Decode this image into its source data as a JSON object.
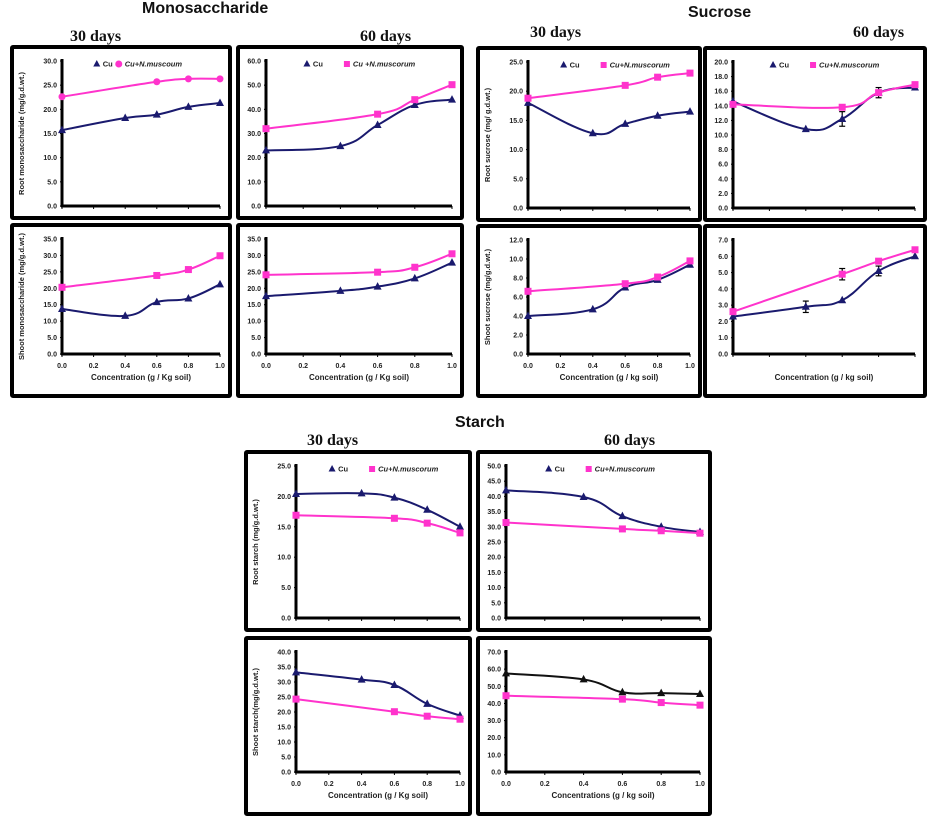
{
  "figure": {
    "groups": [
      {
        "title": "Monosaccharide",
        "days": [
          "30 days",
          "60 days"
        ]
      },
      {
        "title": "Sucrose",
        "days": [
          "30 days",
          "60 days"
        ]
      },
      {
        "title": "Starch",
        "days": [
          "30 days",
          "60 days"
        ]
      }
    ],
    "colors": {
      "cu": "#1a1a6e",
      "cu_nm": "#ff33cc",
      "cu_black": "#111111"
    }
  },
  "chart_data": [
    {
      "id": "mono-root-30",
      "type": "line",
      "group": "Monosaccharide",
      "period": "30 days",
      "ylabel": "Root monosaccharide (mg/g.d.wt.)",
      "xlabel": "",
      "ylim": [
        0,
        30
      ],
      "yticks": [
        "0.0",
        "5.0",
        "10.0",
        "15.0",
        "20.0",
        "25.0",
        "30.0"
      ],
      "xticks": [],
      "x": [
        0,
        0.4,
        0.6,
        0.8,
        1.0
      ],
      "legend": [
        "Cu",
        "Cu+N.muscoum"
      ],
      "series": [
        {
          "name": "Cu",
          "marker": "triangle",
          "x": [
            0,
            0.4,
            0.6,
            0.8,
            1.0
          ],
          "values": [
            15.7,
            18.2,
            18.9,
            20.5,
            21.3
          ]
        },
        {
          "name": "Cu+N.muscoum",
          "marker": "circle",
          "x": [
            0,
            0.6,
            0.8,
            1.0
          ],
          "values": [
            22.6,
            25.7,
            26.3,
            26.3
          ]
        }
      ]
    },
    {
      "id": "mono-root-60",
      "type": "line",
      "group": "Monosaccharide",
      "period": "60 days",
      "ylabel": "",
      "xlabel": "",
      "ylim": [
        0,
        60
      ],
      "yticks": [
        "0.0",
        "10.0",
        "20.0",
        "30.0",
        "40.0",
        "50.0",
        "60.0"
      ],
      "xticks": [],
      "legend": [
        "Cu",
        "Cu +N.muscorum"
      ],
      "series": [
        {
          "name": "Cu",
          "marker": "triangle",
          "x": [
            0,
            0.4,
            0.6,
            0.8,
            1.0
          ],
          "values": [
            23.0,
            24.8,
            33.5,
            41.8,
            44.0
          ]
        },
        {
          "name": "Cu +N.muscorum",
          "marker": "square",
          "x": [
            0,
            0.6,
            0.8,
            1.0
          ],
          "values": [
            32.0,
            38.0,
            44.0,
            50.2
          ]
        }
      ]
    },
    {
      "id": "mono-shoot-30",
      "type": "line",
      "group": "Monosaccharide",
      "period": "30 days",
      "ylabel": "Shoot monosaccharide (mg/g.d.wt.)",
      "xlabel": "Concentration (g / Kg soil)",
      "ylim": [
        0,
        35
      ],
      "yticks": [
        "0.0",
        "5.0",
        "10.0",
        "15.0",
        "20.0",
        "25.0",
        "30.0",
        "35.0"
      ],
      "xticks": [
        "0.0",
        "0.2",
        "0.4",
        "0.6",
        "0.8",
        "1.0"
      ],
      "legend": [],
      "series": [
        {
          "name": "Cu",
          "marker": "triangle",
          "x": [
            0,
            0.4,
            0.6,
            0.8,
            1.0
          ],
          "values": [
            13.7,
            11.6,
            15.8,
            16.9,
            21.2
          ]
        },
        {
          "name": "Cu+N.muscoum",
          "marker": "square",
          "x": [
            0,
            0.6,
            0.8,
            1.0
          ],
          "values": [
            20.3,
            23.9,
            25.7,
            29.9
          ]
        }
      ]
    },
    {
      "id": "mono-shoot-60",
      "type": "line",
      "group": "Monosaccharide",
      "period": "60 days",
      "ylabel": "",
      "xlabel": "Concentration (g / Kg soil)",
      "ylim": [
        0,
        35
      ],
      "yticks": [
        "0.0",
        "5.0",
        "10.0",
        "15.0",
        "20.0",
        "25.0",
        "30.0",
        "35.0"
      ],
      "xticks": [
        "0.0",
        "0.2",
        "0.4",
        "0.6",
        "0.8",
        "1.0"
      ],
      "legend": [],
      "series": [
        {
          "name": "Cu",
          "marker": "triangle",
          "x": [
            0,
            0.4,
            0.6,
            0.8,
            1.0
          ],
          "values": [
            17.6,
            19.2,
            20.5,
            23.0,
            27.8
          ]
        },
        {
          "name": "Cu +N.muscorum",
          "marker": "square",
          "x": [
            0,
            0.6,
            0.8,
            1.0
          ],
          "values": [
            24.1,
            24.9,
            26.4,
            30.5
          ]
        }
      ]
    },
    {
      "id": "suc-root-30",
      "type": "line",
      "group": "Sucrose",
      "period": "30 days",
      "ylabel": "Root sucrose (mg/ g.d.wt.)",
      "xlabel": "",
      "ylim": [
        0,
        25
      ],
      "yticks": [
        "0.0",
        "5.0",
        "10.0",
        "15.0",
        "20.0",
        "25.0"
      ],
      "xticks": [],
      "legend": [
        "Cu",
        "Cu+N.muscorum"
      ],
      "series": [
        {
          "name": "Cu",
          "marker": "triangle",
          "x": [
            0,
            0.4,
            0.6,
            0.8,
            1.0
          ],
          "values": [
            18.0,
            12.8,
            14.4,
            15.8,
            16.5
          ]
        },
        {
          "name": "Cu+N.muscorum",
          "marker": "square",
          "x": [
            0,
            0.6,
            0.8,
            1.0
          ],
          "values": [
            18.8,
            21.0,
            22.4,
            23.1
          ]
        }
      ]
    },
    {
      "id": "suc-root-60",
      "type": "line",
      "group": "Sucrose",
      "period": "60 days",
      "ylabel": "",
      "xlabel": "",
      "ylim": [
        0,
        20
      ],
      "yticks": [
        "0.0",
        "2.0",
        "4.0",
        "6.0",
        "8.0",
        "10.0",
        "12.0",
        "14.0",
        "16.0",
        "18.0",
        "20.0"
      ],
      "xticks": [],
      "legend": [
        "Cu",
        "Cu+N.muscorum"
      ],
      "series": [
        {
          "name": "Cu",
          "marker": "triangle",
          "x": [
            0,
            0.4,
            0.6,
            0.8,
            1.0
          ],
          "values": [
            14.6,
            10.8,
            12.2,
            15.8,
            16.5
          ],
          "errors": [
            0,
            0,
            1.0,
            0.7,
            0
          ]
        },
        {
          "name": "Cu+N.muscorum",
          "marker": "square",
          "x": [
            0,
            0.6,
            0.8,
            1.0
          ],
          "values": [
            14.2,
            13.8,
            15.8,
            16.9
          ]
        }
      ]
    },
    {
      "id": "suc-shoot-30",
      "type": "line",
      "group": "Sucrose",
      "period": "30 days",
      "ylabel": "Shoot sucrose (mg/g.d.wt.)",
      "xlabel": "Concentration (g / kg soil)",
      "ylim": [
        0,
        12
      ],
      "yticks": [
        "0.0",
        "2.0",
        "4.0",
        "6.0",
        "8.0",
        "10.0",
        "12.0"
      ],
      "xticks": [
        "0.0",
        "0.2",
        "0.4",
        "0.6",
        "0.8",
        "1.0"
      ],
      "legend": [],
      "series": [
        {
          "name": "Cu",
          "marker": "triangle",
          "x": [
            0,
            0.4,
            0.6,
            0.8,
            1.0
          ],
          "values": [
            4.0,
            4.7,
            7.0,
            7.8,
            9.4
          ]
        },
        {
          "name": "Cu+N.muscorum",
          "marker": "square",
          "x": [
            0,
            0.6,
            0.8,
            1.0
          ],
          "values": [
            6.6,
            7.4,
            8.1,
            9.8
          ]
        }
      ]
    },
    {
      "id": "suc-shoot-60",
      "type": "line",
      "group": "Sucrose",
      "period": "60 days",
      "ylabel": "",
      "xlabel": "Concentration (g / kg soil)",
      "ylim": [
        0,
        7
      ],
      "yticks": [
        "0.0",
        "1.0",
        "2.0",
        "3.0",
        "4.0",
        "5.0",
        "6.0",
        "7.0"
      ],
      "xticks": [],
      "legend": [],
      "series": [
        {
          "name": "Cu",
          "marker": "triangle",
          "x": [
            0,
            0.4,
            0.6,
            0.8,
            1.0
          ],
          "values": [
            2.3,
            2.9,
            3.3,
            5.1,
            6.0
          ],
          "errors": [
            0,
            0.35,
            0,
            0.3,
            0
          ]
        },
        {
          "name": "Cu+N.muscorum",
          "marker": "square",
          "x": [
            0,
            0.6,
            0.8,
            1.0
          ],
          "values": [
            2.6,
            4.9,
            5.7,
            6.4
          ],
          "errors": [
            0,
            0.35,
            0,
            0
          ]
        }
      ]
    },
    {
      "id": "starch-root-30",
      "type": "line",
      "group": "Starch",
      "period": "30 days",
      "ylabel": "Root starch (mg/g.d.wt.)",
      "xlabel": "",
      "ylim": [
        0,
        25
      ],
      "yticks": [
        "0.0",
        "5.0",
        "10.0",
        "15.0",
        "20.0",
        "25.0"
      ],
      "xticks": [],
      "legend": [
        "Cu",
        "Cu+N.muscorum"
      ],
      "series": [
        {
          "name": "Cu",
          "marker": "triangle",
          "x": [
            0,
            0.4,
            0.6,
            0.8,
            1.0
          ],
          "values": [
            20.4,
            20.5,
            19.8,
            17.8,
            15.0
          ]
        },
        {
          "name": "Cu+N.muscorum",
          "marker": "square",
          "x": [
            0,
            0.6,
            0.8,
            1.0
          ],
          "values": [
            16.9,
            16.4,
            15.6,
            14.0
          ]
        }
      ]
    },
    {
      "id": "starch-root-60",
      "type": "line",
      "group": "Starch",
      "period": "60 days",
      "ylabel": "",
      "xlabel": "",
      "ylim": [
        0,
        50
      ],
      "yticks": [
        "0.0",
        "5.0",
        "10.0",
        "15.0",
        "20.0",
        "25.0",
        "30.0",
        "35.0",
        "40.0",
        "45.0",
        "50.0"
      ],
      "xticks": [],
      "legend": [
        "Cu",
        "Cu+N.muscorum"
      ],
      "series": [
        {
          "name": "Cu",
          "marker": "triangle",
          "x": [
            0,
            0.4,
            0.6,
            0.8,
            1.0
          ],
          "values": [
            42.0,
            39.8,
            33.5,
            30.0,
            28.3
          ]
        },
        {
          "name": "Cu+N.muscorum",
          "marker": "square",
          "x": [
            0,
            0.6,
            0.8,
            1.0
          ],
          "values": [
            31.4,
            29.3,
            28.7,
            27.9
          ]
        }
      ]
    },
    {
      "id": "starch-shoot-30",
      "type": "line",
      "group": "Starch",
      "period": "30 days",
      "ylabel": "Shoot starch(mg/g.d.wt.)",
      "xlabel": "Concentration (g / Kg soil)",
      "ylim": [
        0,
        40
      ],
      "yticks": [
        "0.0",
        "5.0",
        "10.0",
        "15.0",
        "20.0",
        "25.0",
        "30.0",
        "35.0",
        "40.0"
      ],
      "xticks": [
        "0.0",
        "0.2",
        "0.4",
        "0.6",
        "0.8",
        "1.0"
      ],
      "legend": [],
      "series": [
        {
          "name": "Cu",
          "marker": "triangle",
          "x": [
            0,
            0.4,
            0.6,
            0.8,
            1.0
          ],
          "values": [
            33.2,
            30.8,
            29.0,
            22.7,
            18.8
          ]
        },
        {
          "name": "Cu+N.muscorum",
          "marker": "square",
          "x": [
            0,
            0.6,
            0.8,
            1.0
          ],
          "values": [
            24.3,
            20.1,
            18.6,
            17.6
          ]
        }
      ]
    },
    {
      "id": "starch-shoot-60",
      "type": "line",
      "group": "Starch",
      "period": "60 days",
      "ylabel": "",
      "xlabel": "Concentrations (g / kg soil)",
      "ylim": [
        0,
        70
      ],
      "yticks": [
        "0.0",
        "10.0",
        "20.0",
        "30.0",
        "40.0",
        "50.0",
        "60.0",
        "70.0"
      ],
      "xticks": [
        "0.0",
        "0.2",
        "0.4",
        "0.6",
        "0.8",
        "1.0"
      ],
      "legend": [],
      "series": [
        {
          "name": "Cu",
          "marker": "triangle",
          "x": [
            0,
            0.4,
            0.6,
            0.8,
            1.0
          ],
          "values": [
            57.5,
            54.0,
            46.5,
            46.0,
            45.5
          ]
        },
        {
          "name": "Cu+N.muscorum",
          "marker": "square",
          "x": [
            0,
            0.6,
            0.8,
            1.0
          ],
          "values": [
            44.5,
            42.5,
            40.5,
            39.0
          ]
        }
      ]
    }
  ]
}
